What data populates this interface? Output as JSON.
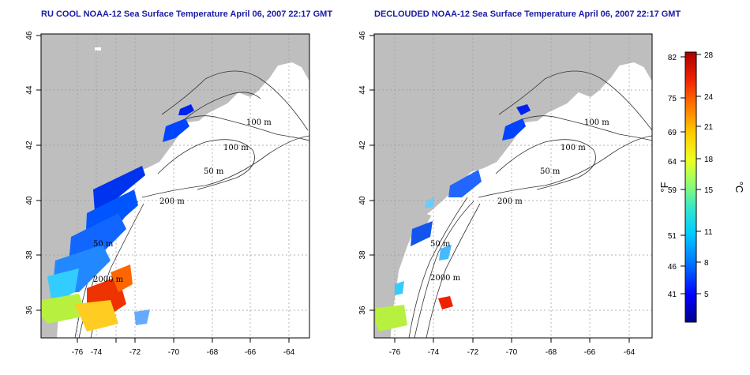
{
  "panels": [
    {
      "id": "left",
      "title": "RU COOL NOAA-12 Sea Surface Temperature April 06, 2007 22:17 GMT",
      "contour_labels": [
        "100 m",
        "100 m",
        "50 m",
        "200 m",
        "50 m",
        "2000 m"
      ]
    },
    {
      "id": "right",
      "title": "DECLOUDED NOAA-12 Sea Surface Temperature April 06, 2007 22:17 GMT",
      "contour_labels": [
        "100 m",
        "100 m",
        "50 m",
        "200 m",
        "50 m",
        "2000 m"
      ]
    }
  ],
  "axes": {
    "lon_ticks": [
      "-76",
      "-74",
      "-72",
      "-70",
      "-68",
      "-66",
      "-64"
    ],
    "lat_ticks": [
      "36",
      "38",
      "40",
      "42",
      "44",
      "46"
    ],
    "lon_range": [
      -77,
      -63
    ],
    "lat_range": [
      35,
      46
    ],
    "grid": "dotted"
  },
  "colorbar": {
    "fahrenheit_ticks": [
      "82",
      "75",
      "69",
      "64",
      "59",
      "51",
      "46",
      "41"
    ],
    "celsius_ticks": [
      "28",
      "24",
      "21",
      "18",
      "15",
      "11",
      "8",
      "5"
    ],
    "fahrenheit_label": "°F",
    "celsius_label": "°C",
    "colors": [
      "#00008b",
      "#0000ff",
      "#0066ff",
      "#00bfff",
      "#00e5e5",
      "#66ff99",
      "#ccff33",
      "#ffff00",
      "#ffaa00",
      "#ff5500",
      "#cc0000",
      "#8b0000"
    ]
  },
  "colors": {
    "land": "#bebebe",
    "title": "#1a1aa6"
  }
}
